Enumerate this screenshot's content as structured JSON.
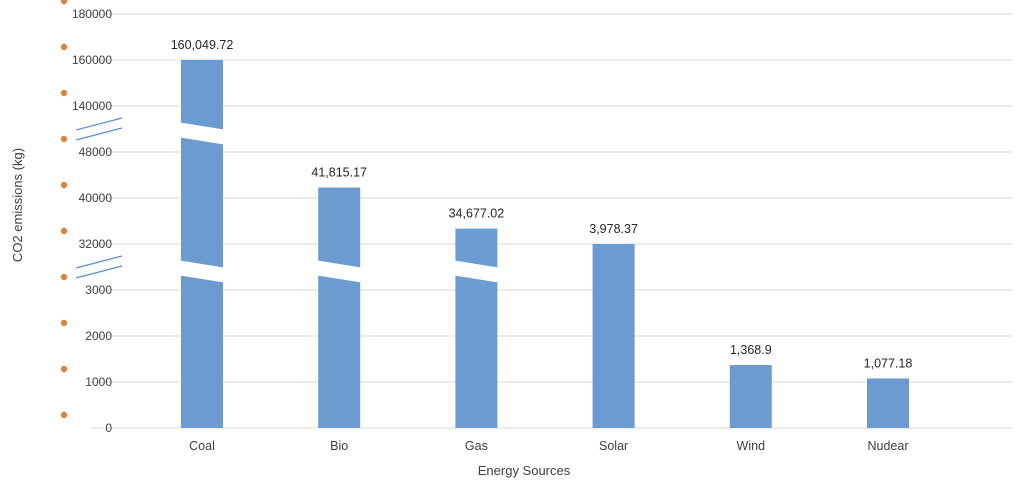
{
  "chart_data": {
    "type": "bar",
    "title": "",
    "xlabel": "Energy Sources",
    "ylabel": "CO2 emissions (kg)",
    "categories": [
      "Coal",
      "Bio",
      "Gas",
      "Solar",
      "Wind",
      "Nudear"
    ],
    "values": [
      160049.72,
      41815.17,
      34677.02,
      3978.37,
      1368.9,
      1077.18
    ],
    "data_labels": [
      "160,049.72",
      "41,815.17",
      "34,677.02",
      "3,978.37",
      "1,368.9",
      "1,077.18"
    ],
    "y_ticks": [
      "0",
      "1000",
      "2000",
      "3000",
      "32000",
      "40000",
      "48000",
      "140000",
      "160000",
      "180000"
    ],
    "y_axis_breaks": [
      "3000-32000",
      "48000-140000"
    ],
    "grid": true,
    "legend": "none",
    "colors": {
      "bar": "#6b9bd1",
      "tick_marker": "#d9853b",
      "grid": "#d9d9d9",
      "break_line": "#5b8fcf"
    }
  }
}
